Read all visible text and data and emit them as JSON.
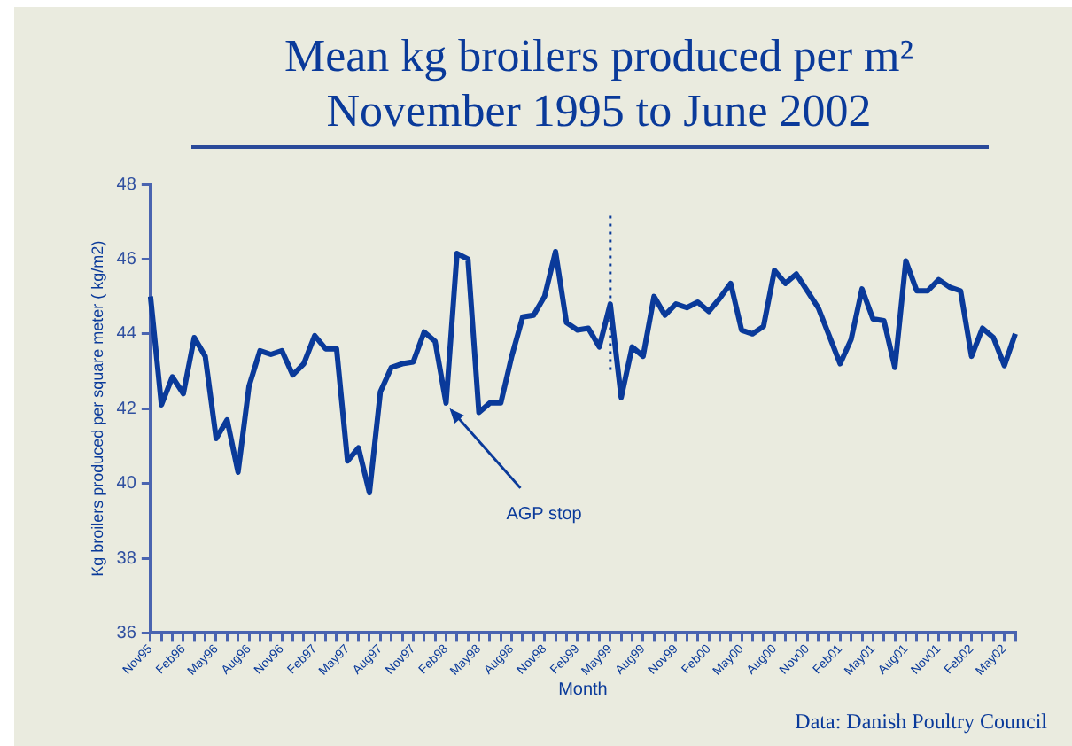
{
  "chart_data": {
    "type": "line",
    "title": "Mean kg broilers produced per m²",
    "subtitle": "November 1995 to June 2002",
    "xlabel": "Month",
    "ylabel": "Kg broilers produced per square meter ( kg/m2)",
    "categories": [
      "Nov95",
      null,
      null,
      "Feb96",
      null,
      null,
      "May96",
      null,
      null,
      "Aug96",
      null,
      null,
      "Nov96",
      null,
      null,
      "Feb97",
      null,
      null,
      "May97",
      null,
      null,
      "Aug97",
      null,
      null,
      "Nov97",
      null,
      null,
      "Feb98",
      null,
      null,
      "May98",
      null,
      null,
      "Aug98",
      null,
      null,
      "Nov98",
      null,
      null,
      "Feb99",
      null,
      null,
      "May99",
      null,
      null,
      "Aug99",
      null,
      null,
      "Nov99",
      null,
      null,
      "Feb00",
      null,
      null,
      "May00",
      null,
      null,
      "Aug00",
      null,
      null,
      "Nov00",
      null,
      null,
      "Feb01",
      null,
      null,
      "May01",
      null,
      null,
      "Aug01",
      null,
      null,
      "Nov01",
      null,
      null,
      "Feb02",
      null,
      null,
      "May02",
      null
    ],
    "series": [
      {
        "color": "#0a3a9a",
        "values": [
          45.0,
          42.1,
          42.85,
          42.4,
          43.9,
          43.4,
          41.2,
          41.7,
          40.3,
          42.6,
          43.55,
          43.45,
          43.55,
          42.9,
          43.2,
          43.95,
          43.6,
          43.6,
          40.6,
          40.95,
          39.75,
          42.45,
          43.1,
          43.2,
          43.25,
          44.05,
          43.8,
          42.15,
          46.15,
          46.0,
          41.9,
          42.15,
          42.15,
          43.4,
          44.45,
          44.5,
          45.0,
          46.2,
          44.3,
          44.1,
          44.15,
          43.65,
          44.8,
          42.3,
          43.65,
          43.4,
          45.0,
          44.5,
          44.8,
          44.7,
          44.85,
          44.6,
          44.95,
          45.35,
          44.1,
          44.0,
          44.2,
          45.7,
          45.35,
          45.6,
          45.15,
          44.7,
          43.95,
          43.2,
          43.85,
          45.2,
          44.4,
          44.35,
          43.1,
          45.95,
          45.15,
          45.15,
          45.45,
          45.25,
          45.15,
          43.4,
          44.15,
          43.9,
          43.15,
          44.0
        ]
      }
    ],
    "ylim": [
      36,
      48
    ],
    "yticks": [
      36,
      38,
      40,
      42,
      44,
      46,
      48
    ],
    "grid": false,
    "legend": false,
    "marker": "none",
    "line_style": "solid",
    "ref_lines": [
      {
        "axis": "x",
        "value": "May99",
        "line_style": "dotted",
        "color": "#0a3a9a"
      }
    ],
    "annotations": [
      {
        "text": "AGP stop",
        "x": "Feb98",
        "y": 42.15
      },
      "Data: Danish Poultry Council"
    ]
  }
}
